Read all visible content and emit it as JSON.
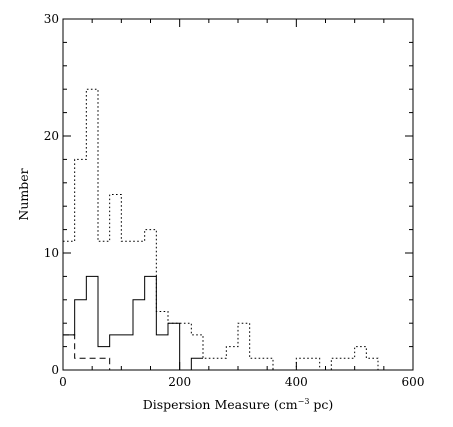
{
  "chart_data": {
    "type": "histogram",
    "xlabel": {
      "prefix": "Dispersion Measure (cm",
      "superscript": "−3",
      "suffix": " pc)"
    },
    "ylabel": "Number",
    "xlim": [
      0,
      600
    ],
    "ylim": [
      0,
      30
    ],
    "xticks_major": [
      0,
      200,
      400,
      600
    ],
    "xticks_minor_step": 50,
    "yticks_major": [
      0,
      10,
      20,
      30
    ],
    "yticks_minor_step": 2,
    "tick_labels_x": [
      "0",
      "200",
      "400",
      "600"
    ],
    "tick_labels_y": [
      "0",
      "10",
      "20",
      "30"
    ],
    "grid": false,
    "legend": null,
    "series": [
      {
        "style": "dotted",
        "color": "#000000",
        "bins": [
          {
            "x0": 0,
            "x1": 20,
            "value": 11
          },
          {
            "x0": 20,
            "x1": 40,
            "value": 18
          },
          {
            "x0": 40,
            "x1": 60,
            "value": 24
          },
          {
            "x0": 60,
            "x1": 80,
            "value": 11
          },
          {
            "x0": 80,
            "x1": 100,
            "value": 15
          },
          {
            "x0": 100,
            "x1": 140,
            "value": 11
          },
          {
            "x0": 140,
            "x1": 160,
            "value": 12
          },
          {
            "x0": 160,
            "x1": 180,
            "value": 5
          },
          {
            "x0": 180,
            "x1": 220,
            "value": 4
          },
          {
            "x0": 220,
            "x1": 240,
            "value": 3
          },
          {
            "x0": 240,
            "x1": 280,
            "value": 1
          },
          {
            "x0": 280,
            "x1": 300,
            "value": 2
          },
          {
            "x0": 300,
            "x1": 320,
            "value": 4
          },
          {
            "x0": 320,
            "x1": 360,
            "value": 1
          },
          {
            "x0": 360,
            "x1": 400,
            "value": 0
          },
          {
            "x0": 400,
            "x1": 440,
            "value": 1
          },
          {
            "x0": 440,
            "x1": 460,
            "value": 0
          },
          {
            "x0": 460,
            "x1": 500,
            "value": 1
          },
          {
            "x0": 500,
            "x1": 520,
            "value": 2
          },
          {
            "x0": 520,
            "x1": 540,
            "value": 1
          },
          {
            "x0": 540,
            "x1": 600,
            "value": 0
          }
        ]
      },
      {
        "style": "solid",
        "color": "#000000",
        "bins": [
          {
            "x0": 0,
            "x1": 20,
            "value": 3
          },
          {
            "x0": 20,
            "x1": 40,
            "value": 6
          },
          {
            "x0": 40,
            "x1": 60,
            "value": 8
          },
          {
            "x0": 60,
            "x1": 80,
            "value": 2
          },
          {
            "x0": 80,
            "x1": 120,
            "value": 3
          },
          {
            "x0": 120,
            "x1": 140,
            "value": 6
          },
          {
            "x0": 140,
            "x1": 160,
            "value": 8
          },
          {
            "x0": 160,
            "x1": 180,
            "value": 3
          },
          {
            "x0": 180,
            "x1": 200,
            "value": 4
          },
          {
            "x0": 200,
            "x1": 220,
            "value": 0
          },
          {
            "x0": 220,
            "x1": 240,
            "value": 1
          }
        ]
      },
      {
        "style": "dashed",
        "color": "#000000",
        "bins": [
          {
            "x0": 0,
            "x1": 20,
            "value": 3
          },
          {
            "x0": 20,
            "x1": 80,
            "value": 1
          },
          {
            "x0": 80,
            "x1": 100,
            "value": 0
          }
        ]
      }
    ]
  }
}
